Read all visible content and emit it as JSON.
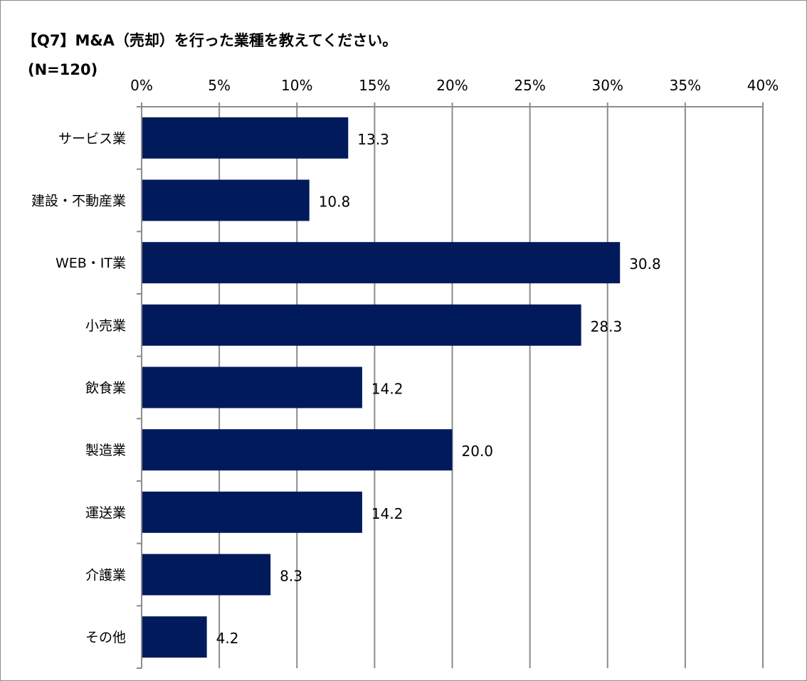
{
  "colors": {
    "bar": "#001A5C",
    "gridline": "#8c8c8c",
    "axis": "#8c8c8c",
    "text": "#000000",
    "border": "#8c8c8c"
  },
  "chart_data": {
    "type": "bar",
    "orientation": "horizontal",
    "title": "【Q7】M&A（売却）を行った業種を教えてください。",
    "sample_label": "(N=120)",
    "xlabel": "",
    "ylabel": "",
    "xlim": [
      0,
      40
    ],
    "x_ticks": [
      0,
      5,
      10,
      15,
      20,
      25,
      30,
      35,
      40
    ],
    "x_tick_labels": [
      "0%",
      "5%",
      "10%",
      "15%",
      "20%",
      "25%",
      "30%",
      "35%",
      "40%"
    ],
    "grid": true,
    "categories": [
      "サービス業",
      "建設・不動産業",
      "WEB・IT業",
      "小売業",
      "飲食業",
      "製造業",
      "運送業",
      "介護業",
      "その他"
    ],
    "values": [
      13.3,
      10.8,
      30.8,
      28.3,
      14.2,
      20.0,
      14.2,
      8.3,
      4.2
    ],
    "value_labels": [
      "13.3",
      "10.8",
      "30.8",
      "28.3",
      "14.2",
      "20.0",
      "14.2",
      "8.3",
      "4.2"
    ]
  }
}
